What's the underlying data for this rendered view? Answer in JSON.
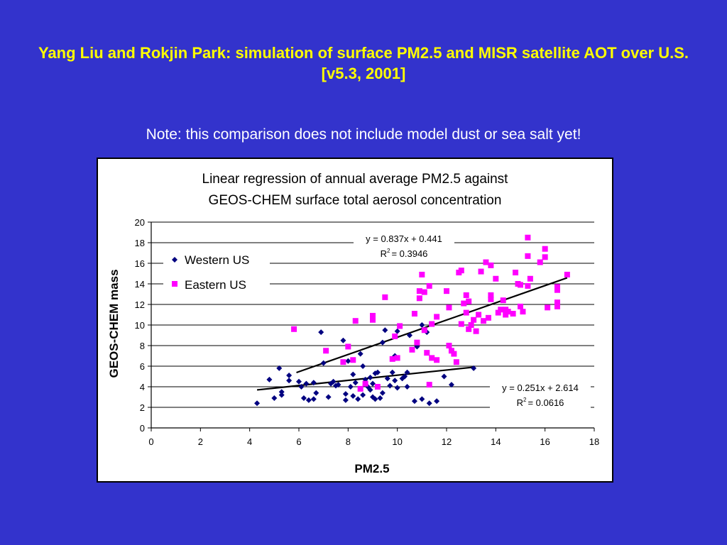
{
  "slide": {
    "title": "Yang Liu and Rokjin Park: simulation of surface PM2.5 and MISR satellite AOT over U.S. [v5.3, 2001]",
    "note": "Note: this comparison does not include model dust or sea salt yet!"
  },
  "colors": {
    "background": "#3333cc",
    "title": "#ffff00",
    "western": "#000080",
    "eastern": "#ff00ff"
  },
  "chart_data": {
    "type": "scatter",
    "title_lines": [
      "Linear regression of annual average PM2.5 against",
      "GEOS-CHEM surface total aerosol concentration"
    ],
    "xlabel": "PM2.5",
    "ylabel": "GEOS-CHEM mass",
    "xlim": [
      0,
      18
    ],
    "ylim": [
      0,
      20
    ],
    "xticks": [
      0,
      2,
      4,
      6,
      8,
      10,
      12,
      14,
      16,
      18
    ],
    "yticks": [
      0,
      2,
      4,
      6,
      8,
      10,
      12,
      14,
      16,
      18,
      20
    ],
    "grid": "horizontal",
    "legend": "top-left",
    "series": [
      {
        "name": "Western US",
        "marker": "diamond",
        "color": "#000080",
        "points": [
          [
            4.3,
            2.4
          ],
          [
            4.8,
            4.7
          ],
          [
            5.0,
            2.9
          ],
          [
            5.2,
            5.8
          ],
          [
            5.3,
            3.5
          ],
          [
            5.3,
            3.2
          ],
          [
            5.6,
            5.1
          ],
          [
            5.6,
            4.6
          ],
          [
            6.0,
            4.5
          ],
          [
            6.1,
            4.0
          ],
          [
            6.2,
            2.9
          ],
          [
            6.3,
            4.3
          ],
          [
            6.4,
            2.7
          ],
          [
            6.6,
            4.4
          ],
          [
            6.6,
            2.8
          ],
          [
            6.7,
            3.4
          ],
          [
            6.9,
            9.3
          ],
          [
            7.0,
            6.3
          ],
          [
            7.2,
            3.0
          ],
          [
            7.3,
            4.3
          ],
          [
            7.4,
            4.5
          ],
          [
            7.6,
            4.2
          ],
          [
            7.8,
            8.5
          ],
          [
            7.9,
            3.3
          ],
          [
            7.9,
            2.7
          ],
          [
            8.1,
            4.0
          ],
          [
            8.2,
            3.1
          ],
          [
            8.2,
            5.2
          ],
          [
            8.3,
            4.4
          ],
          [
            8.4,
            2.8
          ],
          [
            8.5,
            7.2
          ],
          [
            8.6,
            6.0
          ],
          [
            8.6,
            3.2
          ],
          [
            8.7,
            4.7
          ],
          [
            8.8,
            4.0
          ],
          [
            8.9,
            4.9
          ],
          [
            8.9,
            3.7
          ],
          [
            9.0,
            3.0
          ],
          [
            9.1,
            2.8
          ],
          [
            9.1,
            5.3
          ],
          [
            9.2,
            5.4
          ],
          [
            9.3,
            2.9
          ],
          [
            9.4,
            8.3
          ],
          [
            9.4,
            3.4
          ],
          [
            9.5,
            9.5
          ],
          [
            9.6,
            4.8
          ],
          [
            9.7,
            4.1
          ],
          [
            9.8,
            5.4
          ],
          [
            9.9,
            4.6
          ],
          [
            9.9,
            7.0
          ],
          [
            10.0,
            3.9
          ],
          [
            10.0,
            9.4
          ],
          [
            10.2,
            4.8
          ],
          [
            10.3,
            5.0
          ],
          [
            10.4,
            4.0
          ],
          [
            10.5,
            9.0
          ],
          [
            10.7,
            2.6
          ],
          [
            10.8,
            7.9
          ],
          [
            11.0,
            2.8
          ],
          [
            11.0,
            10.0
          ],
          [
            11.2,
            9.3
          ],
          [
            11.3,
            2.4
          ],
          [
            11.6,
            2.6
          ],
          [
            11.9,
            5.0
          ],
          [
            12.2,
            4.2
          ],
          [
            13.1,
            5.8
          ],
          [
            8.0,
            6.5
          ],
          [
            9.0,
            4.3
          ],
          [
            10.4,
            5.4
          ],
          [
            7.5,
            4.1
          ]
        ],
        "fit": {
          "slope": 0.251,
          "intercept": 2.614,
          "x_range": [
            4.3,
            13.1
          ]
        },
        "equation": "y = 0.251x + 2.614",
        "r2_label": "R",
        "r2_sup": "2",
        "r2_value": "= 0.0616"
      },
      {
        "name": "Eastern US",
        "marker": "square",
        "color": "#ff00ff",
        "points": [
          [
            5.8,
            9.6
          ],
          [
            7.1,
            7.5
          ],
          [
            7.8,
            6.4
          ],
          [
            8.0,
            7.9
          ],
          [
            8.2,
            6.6
          ],
          [
            8.3,
            10.4
          ],
          [
            8.5,
            3.8
          ],
          [
            8.7,
            4.3
          ],
          [
            9.0,
            10.9
          ],
          [
            9.0,
            10.5
          ],
          [
            9.2,
            4.0
          ],
          [
            9.5,
            12.7
          ],
          [
            9.8,
            6.7
          ],
          [
            9.9,
            8.9
          ],
          [
            10.1,
            9.9
          ],
          [
            10.6,
            7.6
          ],
          [
            10.7,
            11.1
          ],
          [
            10.8,
            8.3
          ],
          [
            10.9,
            12.6
          ],
          [
            10.9,
            13.3
          ],
          [
            11.0,
            14.9
          ],
          [
            11.1,
            13.2
          ],
          [
            11.1,
            9.5
          ],
          [
            11.2,
            7.3
          ],
          [
            11.3,
            13.8
          ],
          [
            11.3,
            4.2
          ],
          [
            11.4,
            6.8
          ],
          [
            11.6,
            6.6
          ],
          [
            11.6,
            10.8
          ],
          [
            12.0,
            13.3
          ],
          [
            12.1,
            8.0
          ],
          [
            12.1,
            11.7
          ],
          [
            12.2,
            7.5
          ],
          [
            12.3,
            7.2
          ],
          [
            12.4,
            6.4
          ],
          [
            12.5,
            15.1
          ],
          [
            12.6,
            15.3
          ],
          [
            12.6,
            10.1
          ],
          [
            12.7,
            12.1
          ],
          [
            12.8,
            11.2
          ],
          [
            12.8,
            12.9
          ],
          [
            12.9,
            9.6
          ],
          [
            13.0,
            10.0
          ],
          [
            13.1,
            10.5
          ],
          [
            13.2,
            9.4
          ],
          [
            13.3,
            11.0
          ],
          [
            13.4,
            15.2
          ],
          [
            13.5,
            10.4
          ],
          [
            13.6,
            16.1
          ],
          [
            13.7,
            10.7
          ],
          [
            13.8,
            15.8
          ],
          [
            13.8,
            12.9
          ],
          [
            13.8,
            12.5
          ],
          [
            14.0,
            14.5
          ],
          [
            14.1,
            11.2
          ],
          [
            14.2,
            11.5
          ],
          [
            14.3,
            12.4
          ],
          [
            14.4,
            11.0
          ],
          [
            14.5,
            11.3
          ],
          [
            14.7,
            11.1
          ],
          [
            14.8,
            15.1
          ],
          [
            14.9,
            14.0
          ],
          [
            15.0,
            11.8
          ],
          [
            15.1,
            11.3
          ],
          [
            15.3,
            18.5
          ],
          [
            15.3,
            16.7
          ],
          [
            15.3,
            13.8
          ],
          [
            15.4,
            14.5
          ],
          [
            15.8,
            16.1
          ],
          [
            16.0,
            16.6
          ],
          [
            16.0,
            17.4
          ],
          [
            16.1,
            11.7
          ],
          [
            16.5,
            13.4
          ],
          [
            16.5,
            12.2
          ],
          [
            16.5,
            11.8
          ],
          [
            16.9,
            14.9
          ],
          [
            10.0,
            6.8
          ],
          [
            12.9,
            12.3
          ],
          [
            11.4,
            10.1
          ],
          [
            15.0,
            13.9
          ],
          [
            16.5,
            13.7
          ],
          [
            14.4,
            11.5
          ]
        ],
        "fit": {
          "slope": 0.837,
          "intercept": 0.441,
          "x_range": [
            5.9,
            16.9
          ]
        },
        "equation": "y = 0.837x + 0.441",
        "r2_label": "R",
        "r2_sup": "2",
        "r2_value": "= 0.3946"
      }
    ]
  }
}
